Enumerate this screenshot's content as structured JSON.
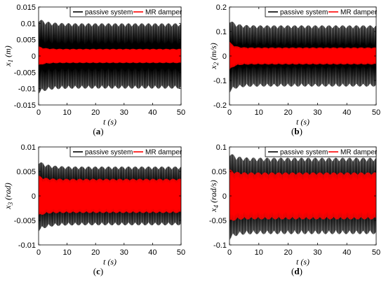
{
  "chart_data": [
    {
      "type": "line",
      "panel": "a",
      "caption": "a",
      "xlabel": "t (s)",
      "ylabel_main": "x",
      "ylabel_sub": "1",
      "ylabel_unit": "(m)",
      "xlim": [
        0,
        50
      ],
      "ylim": [
        -0.015,
        0.015
      ],
      "x_ticks": [
        "0",
        "10",
        "20",
        "30",
        "40",
        "50"
      ],
      "y_ticks": [
        "-0.015",
        "-0.01",
        "-0.005",
        "0",
        "0.005",
        "0.01",
        "0.015"
      ],
      "y_tick_values": [
        -0.015,
        -0.01,
        -0.005,
        0,
        0.005,
        0.01,
        0.015
      ],
      "grid": false,
      "legend": "top-right",
      "series": [
        {
          "name": "passive system",
          "color": "#000000",
          "amplitude": 0.01,
          "peak": 0.0115,
          "decay": 3
        },
        {
          "name": "MR damper",
          "color": "#ff0000",
          "amplitude": 0.0022,
          "peak": 0.003,
          "decay": 2
        }
      ]
    },
    {
      "type": "line",
      "panel": "b",
      "caption": "b",
      "xlabel": "t (s)",
      "ylabel_main": "x",
      "ylabel_sub": "2",
      "ylabel_unit": "(m/s)",
      "xlim": [
        0,
        50
      ],
      "ylim": [
        -0.2,
        0.2
      ],
      "x_ticks": [
        "0",
        "10",
        "20",
        "30",
        "40",
        "50"
      ],
      "y_ticks": [
        "-0.2",
        "-0.1",
        "0",
        "0.1",
        "0.2"
      ],
      "y_tick_values": [
        -0.2,
        -0.1,
        0,
        0.1,
        0.2
      ],
      "grid": false,
      "legend": "top-right",
      "series": [
        {
          "name": "passive system",
          "color": "#000000",
          "amplitude": 0.125,
          "peak": 0.15,
          "decay": 2
        },
        {
          "name": "MR damper",
          "color": "#ff0000",
          "amplitude": 0.035,
          "peak": 0.06,
          "decay": 1.5
        }
      ]
    },
    {
      "type": "line",
      "panel": "c",
      "caption": "c",
      "xlabel": "t (s)",
      "ylabel_main": "x",
      "ylabel_sub": "3",
      "ylabel_unit": "(rad)",
      "xlim": [
        0,
        50
      ],
      "ylim": [
        -0.01,
        0.01
      ],
      "x_ticks": [
        "0",
        "10",
        "20",
        "30",
        "40",
        "50"
      ],
      "y_ticks": [
        "-0.01",
        "-0.005",
        "0",
        "0.005",
        "0.01"
      ],
      "y_tick_values": [
        -0.01,
        -0.005,
        0,
        0.005,
        0.01
      ],
      "grid": false,
      "legend": "top-right",
      "series": [
        {
          "name": "passive system",
          "color": "#000000",
          "amplitude": 0.006,
          "peak": 0.0072,
          "decay": 3
        },
        {
          "name": "MR damper",
          "color": "#ff0000",
          "amplitude": 0.0035,
          "peak": 0.0042,
          "decay": 2
        }
      ]
    },
    {
      "type": "line",
      "panel": "d",
      "caption": "d",
      "xlabel": "t (s)",
      "ylabel_main": "x",
      "ylabel_sub": "4",
      "ylabel_unit": "(rad/s)",
      "xlim": [
        0,
        50
      ],
      "ylim": [
        -0.1,
        0.1
      ],
      "x_ticks": [
        "0",
        "10",
        "20",
        "30",
        "40",
        "50"
      ],
      "y_ticks": [
        "-0.1",
        "-0.05",
        "0",
        "0.05",
        "0.1"
      ],
      "y_tick_values": [
        -0.1,
        -0.05,
        0,
        0.05,
        0.1
      ],
      "grid": false,
      "legend": "top-right",
      "series": [
        {
          "name": "passive system",
          "color": "#000000",
          "amplitude": 0.078,
          "peak": 0.09,
          "decay": 2
        },
        {
          "name": "MR damper",
          "color": "#ff0000",
          "amplitude": 0.048,
          "peak": 0.055,
          "decay": 1.5
        }
      ]
    }
  ]
}
